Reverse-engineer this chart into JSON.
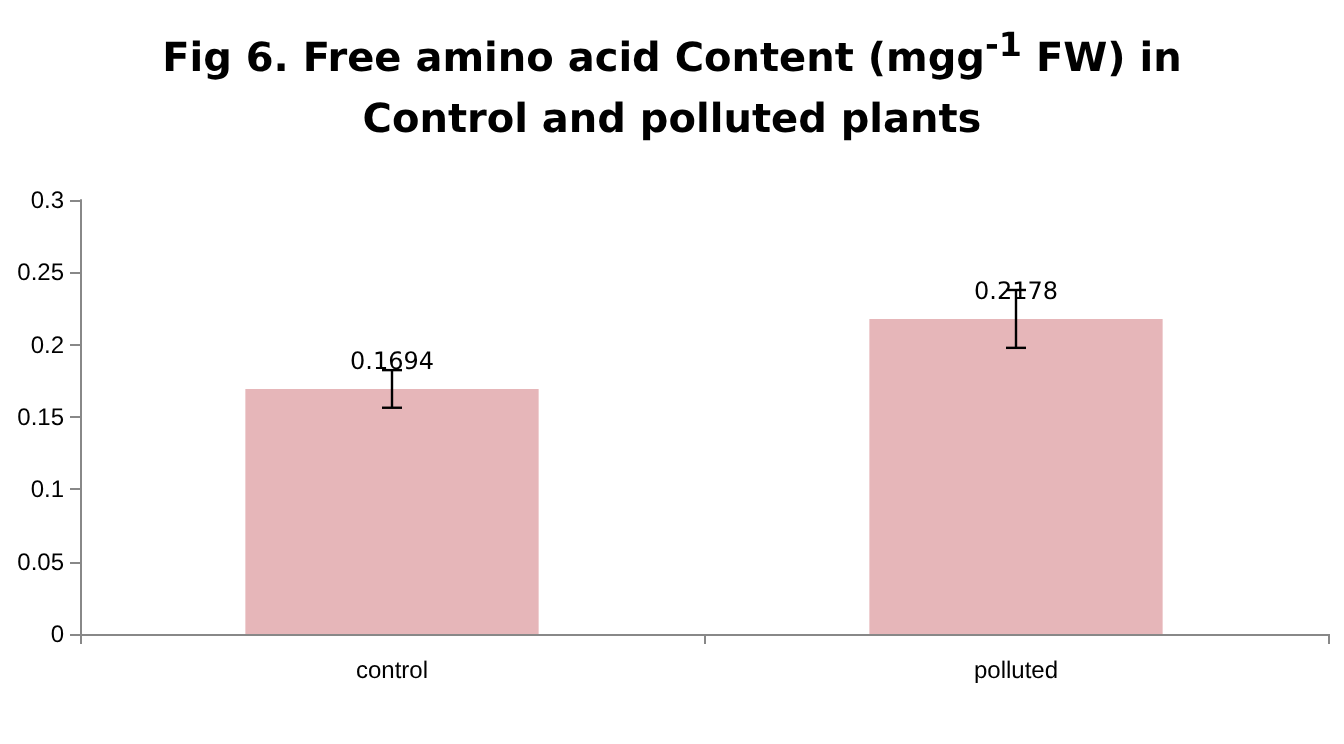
{
  "chart_data": {
    "type": "bar",
    "title": "Fig 6. Free amino acid Content (mgg$^{-1}$ FW) in Control and polluted plants",
    "categories": [
      "control",
      "polluted"
    ],
    "values": [
      0.1694,
      0.2178
    ],
    "errors": [
      0.013,
      0.02
    ],
    "color": "#e6b6b9",
    "data_labels": true,
    "ylim": [
      0,
      0.3
    ],
    "yticks": [
      0,
      0.05,
      0.1,
      0.15,
      0.2,
      0.25,
      0.3
    ]
  }
}
